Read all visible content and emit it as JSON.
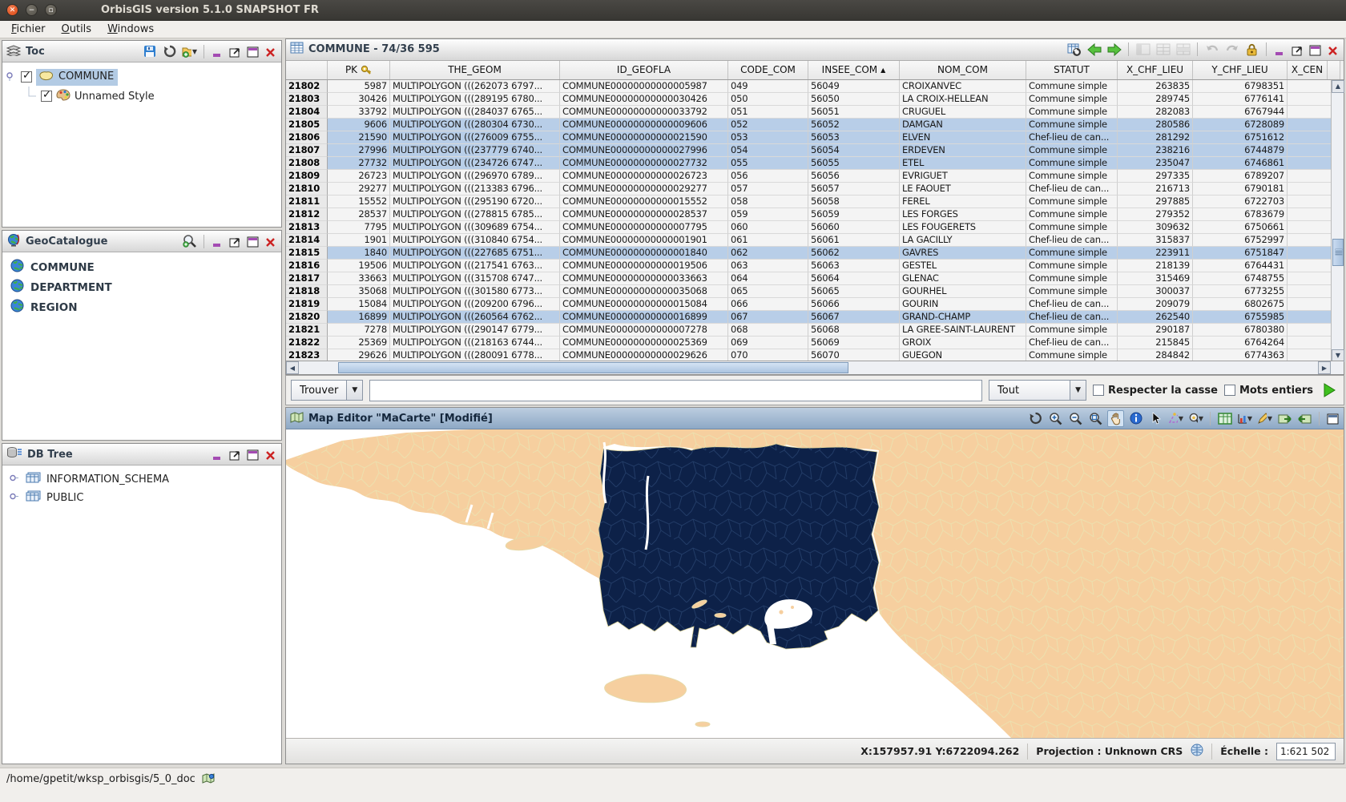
{
  "window": {
    "title": "OrbisGIS version 5.1.0 SNAPSHOT FR"
  },
  "menu": {
    "items": [
      {
        "label": "Fichier"
      },
      {
        "label": "Outils"
      },
      {
        "label": "Windows"
      }
    ]
  },
  "toc": {
    "title": "Toc",
    "layer_label": "COMMUNE",
    "style_label": "Unnamed Style"
  },
  "geocatalogue": {
    "title": "GeoCatalogue",
    "items": [
      {
        "label": "COMMUNE"
      },
      {
        "label": "DEPARTMENT"
      },
      {
        "label": "REGION"
      }
    ]
  },
  "dbtree": {
    "title": "DB Tree",
    "items": [
      {
        "label": "INFORMATION_SCHEMA"
      },
      {
        "label": "PUBLIC"
      }
    ]
  },
  "table": {
    "title": "COMMUNE - 74/36 595",
    "columns": [
      "PK",
      "THE_GEOM",
      "ID_GEOFLA",
      "CODE_COM",
      "INSEE_COM",
      "NOM_COM",
      "STATUT",
      "X_CHF_LIEU",
      "Y_CHF_LIEU",
      "X_CEN"
    ],
    "sort_column": "INSEE_COM",
    "sort_direction": "ascending",
    "rows": [
      {
        "num": "21802",
        "pk": "5987",
        "geom": "MULTIPOLYGON (((262073 6797...",
        "id": "COMMUNE00000000000005987",
        "code": "049",
        "insee": "56049",
        "nom": "CROIXANVEC",
        "statut": "Commune simple",
        "x": "263835",
        "y": "6798351"
      },
      {
        "num": "21803",
        "pk": "30426",
        "geom": "MULTIPOLYGON (((289195 6780...",
        "id": "COMMUNE00000000000030426",
        "code": "050",
        "insee": "56050",
        "nom": "LA CROIX-HELLEAN",
        "statut": "Commune simple",
        "x": "289745",
        "y": "6776141"
      },
      {
        "num": "21804",
        "pk": "33792",
        "geom": "MULTIPOLYGON (((284037 6765...",
        "id": "COMMUNE00000000000033792",
        "code": "051",
        "insee": "56051",
        "nom": "CRUGUEL",
        "statut": "Commune simple",
        "x": "282083",
        "y": "6767944"
      },
      {
        "num": "21805",
        "pk": "9606",
        "geom": "MULTIPOLYGON (((280304 6730...",
        "id": "COMMUNE00000000000009606",
        "code": "052",
        "insee": "56052",
        "nom": "DAMGAN",
        "statut": "Commune simple",
        "x": "280586",
        "y": "6728089",
        "sel": true
      },
      {
        "num": "21806",
        "pk": "21590",
        "geom": "MULTIPOLYGON (((276009 6755...",
        "id": "COMMUNE00000000000021590",
        "code": "053",
        "insee": "56053",
        "nom": "ELVEN",
        "statut": "Chef-lieu de can...",
        "x": "281292",
        "y": "6751612",
        "sel": true
      },
      {
        "num": "21807",
        "pk": "27996",
        "geom": "MULTIPOLYGON (((237779 6740...",
        "id": "COMMUNE00000000000027996",
        "code": "054",
        "insee": "56054",
        "nom": "ERDEVEN",
        "statut": "Commune simple",
        "x": "238216",
        "y": "6744879",
        "sel": true
      },
      {
        "num": "21808",
        "pk": "27732",
        "geom": "MULTIPOLYGON (((234726 6747...",
        "id": "COMMUNE00000000000027732",
        "code": "055",
        "insee": "56055",
        "nom": "ETEL",
        "statut": "Commune simple",
        "x": "235047",
        "y": "6746861",
        "sel": true
      },
      {
        "num": "21809",
        "pk": "26723",
        "geom": "MULTIPOLYGON (((296970 6789...",
        "id": "COMMUNE00000000000026723",
        "code": "056",
        "insee": "56056",
        "nom": "EVRIGUET",
        "statut": "Commune simple",
        "x": "297335",
        "y": "6789207"
      },
      {
        "num": "21810",
        "pk": "29277",
        "geom": "MULTIPOLYGON (((213383 6796...",
        "id": "COMMUNE00000000000029277",
        "code": "057",
        "insee": "56057",
        "nom": "LE FAOUET",
        "statut": "Chef-lieu de can...",
        "x": "216713",
        "y": "6790181"
      },
      {
        "num": "21811",
        "pk": "15552",
        "geom": "MULTIPOLYGON (((295190 6720...",
        "id": "COMMUNE00000000000015552",
        "code": "058",
        "insee": "56058",
        "nom": "FEREL",
        "statut": "Commune simple",
        "x": "297885",
        "y": "6722703"
      },
      {
        "num": "21812",
        "pk": "28537",
        "geom": "MULTIPOLYGON (((278815 6785...",
        "id": "COMMUNE00000000000028537",
        "code": "059",
        "insee": "56059",
        "nom": "LES FORGES",
        "statut": "Commune simple",
        "x": "279352",
        "y": "6783679"
      },
      {
        "num": "21813",
        "pk": "7795",
        "geom": "MULTIPOLYGON (((309689 6754...",
        "id": "COMMUNE00000000000007795",
        "code": "060",
        "insee": "56060",
        "nom": "LES FOUGERETS",
        "statut": "Commune simple",
        "x": "309632",
        "y": "6750661"
      },
      {
        "num": "21814",
        "pk": "1901",
        "geom": "MULTIPOLYGON (((310840 6754...",
        "id": "COMMUNE00000000000001901",
        "code": "061",
        "insee": "56061",
        "nom": "LA GACILLY",
        "statut": "Chef-lieu de can...",
        "x": "315837",
        "y": "6752997"
      },
      {
        "num": "21815",
        "pk": "1840",
        "geom": "MULTIPOLYGON (((227685 6751...",
        "id": "COMMUNE00000000000001840",
        "code": "062",
        "insee": "56062",
        "nom": "GAVRES",
        "statut": "Commune simple",
        "x": "223911",
        "y": "6751847",
        "sel": true
      },
      {
        "num": "21816",
        "pk": "19506",
        "geom": "MULTIPOLYGON (((217541 6763...",
        "id": "COMMUNE00000000000019506",
        "code": "063",
        "insee": "56063",
        "nom": "GESTEL",
        "statut": "Commune simple",
        "x": "218139",
        "y": "6764431"
      },
      {
        "num": "21817",
        "pk": "33663",
        "geom": "MULTIPOLYGON (((315708 6747...",
        "id": "COMMUNE00000000000033663",
        "code": "064",
        "insee": "56064",
        "nom": "GLENAC",
        "statut": "Commune simple",
        "x": "315469",
        "y": "6748755"
      },
      {
        "num": "21818",
        "pk": "35068",
        "geom": "MULTIPOLYGON (((301580 6773...",
        "id": "COMMUNE00000000000035068",
        "code": "065",
        "insee": "56065",
        "nom": "GOURHEL",
        "statut": "Commune simple",
        "x": "300037",
        "y": "6773255"
      },
      {
        "num": "21819",
        "pk": "15084",
        "geom": "MULTIPOLYGON (((209200 6796...",
        "id": "COMMUNE00000000000015084",
        "code": "066",
        "insee": "56066",
        "nom": "GOURIN",
        "statut": "Chef-lieu de can...",
        "x": "209079",
        "y": "6802675"
      },
      {
        "num": "21820",
        "pk": "16899",
        "geom": "MULTIPOLYGON (((260564 6762...",
        "id": "COMMUNE00000000000016899",
        "code": "067",
        "insee": "56067",
        "nom": "GRAND-CHAMP",
        "statut": "Chef-lieu de can...",
        "x": "262540",
        "y": "6755985",
        "sel": true
      },
      {
        "num": "21821",
        "pk": "7278",
        "geom": "MULTIPOLYGON (((290147 6779...",
        "id": "COMMUNE00000000000007278",
        "code": "068",
        "insee": "56068",
        "nom": "LA GREE-SAINT-LAURENT",
        "statut": "Commune simple",
        "x": "290187",
        "y": "6780380"
      },
      {
        "num": "21822",
        "pk": "25369",
        "geom": "MULTIPOLYGON (((218163 6744...",
        "id": "COMMUNE00000000000025369",
        "code": "069",
        "insee": "56069",
        "nom": "GROIX",
        "statut": "Chef-lieu de can...",
        "x": "215845",
        "y": "6764264"
      },
      {
        "num": "21823",
        "pk": "29626",
        "geom": "MULTIPOLYGON (((280091 6778...",
        "id": "COMMUNE00000000000029626",
        "code": "070",
        "insee": "56070",
        "nom": "GUEGON",
        "statut": "Commune simple",
        "x": "284842",
        "y": "6774363"
      }
    ]
  },
  "find": {
    "label": "Trouver",
    "input_value": "",
    "scope": "Tout",
    "case_label": "Respecter la casse",
    "words_label": "Mots entiers"
  },
  "map": {
    "title": "Map Editor \"MaCarte\" [Modifié]",
    "coords": "X:157957.91 Y:6722094.262",
    "projection": "Projection : Unknown CRS",
    "scale_label": "Échelle :",
    "scale_value": "1:621 502",
    "colors": {
      "land": "#f6cf9f",
      "selection": "#0d2148",
      "mesh": "#ece0ae",
      "sea": "#ffffff",
      "selected_row": "#b8cee8"
    }
  },
  "statusbar": {
    "path": "/home/gpetit/wksp_orbisgis/5_0_doc"
  }
}
